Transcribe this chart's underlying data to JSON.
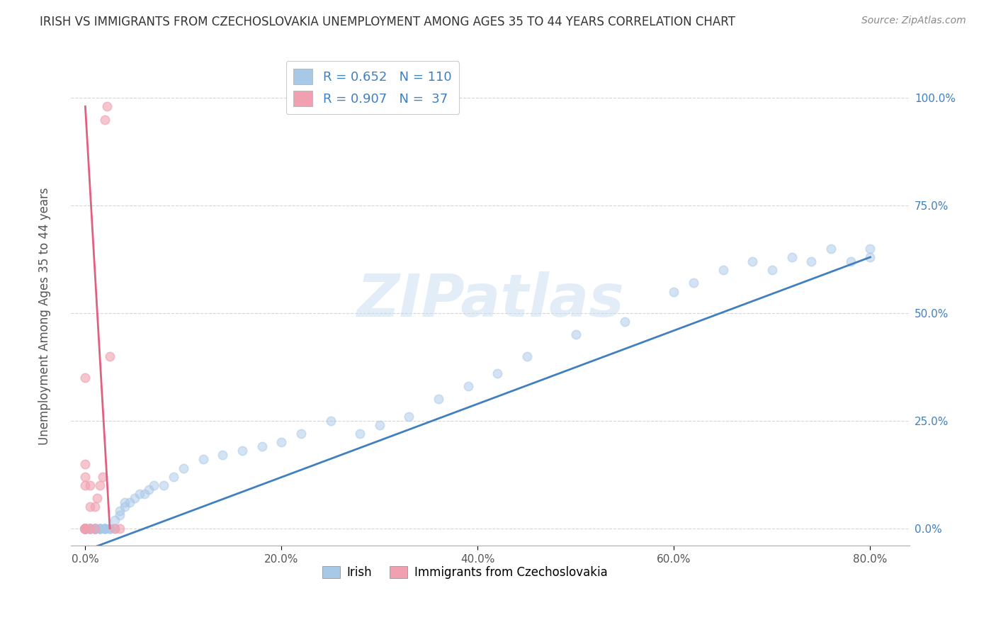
{
  "title": "IRISH VS IMMIGRANTS FROM CZECHOSLOVAKIA UNEMPLOYMENT AMONG AGES 35 TO 44 YEARS CORRELATION CHART",
  "source": "Source: ZipAtlas.com",
  "ylabel": "Unemployment Among Ages 35 to 44 years",
  "irish_R": 0.652,
  "irish_N": 110,
  "czech_R": 0.907,
  "czech_N": 37,
  "irish_color": "#a8c8e8",
  "czech_color": "#f0a0b0",
  "irish_line_color": "#4080c0",
  "czech_line_color": "#e06080",
  "irish_scatter_x": [
    0.0,
    0.0,
    0.0,
    0.0,
    0.0,
    0.0,
    0.0,
    0.0,
    0.0,
    0.0,
    0.0,
    0.0,
    0.0,
    0.0,
    0.0,
    0.0,
    0.0,
    0.0,
    0.0,
    0.0,
    0.0,
    0.0,
    0.0,
    0.0,
    0.0,
    0.0,
    0.0,
    0.0,
    0.0,
    0.0,
    0.005,
    0.005,
    0.005,
    0.005,
    0.005,
    0.005,
    0.005,
    0.005,
    0.005,
    0.005,
    0.01,
    0.01,
    0.01,
    0.01,
    0.01,
    0.01,
    0.01,
    0.01,
    0.01,
    0.01,
    0.015,
    0.015,
    0.015,
    0.015,
    0.015,
    0.02,
    0.02,
    0.02,
    0.02,
    0.02,
    0.025,
    0.025,
    0.025,
    0.03,
    0.03,
    0.035,
    0.035,
    0.04,
    0.04,
    0.045,
    0.05,
    0.055,
    0.06,
    0.065,
    0.07,
    0.08,
    0.09,
    0.1,
    0.12,
    0.14,
    0.16,
    0.18,
    0.2,
    0.22,
    0.25,
    0.28,
    0.3,
    0.33,
    0.36,
    0.39,
    0.42,
    0.45,
    0.5,
    0.55,
    0.6,
    0.62,
    0.65,
    0.68,
    0.7,
    0.72,
    0.74,
    0.76,
    0.78,
    0.8,
    0.8
  ],
  "irish_scatter_y": [
    0.0,
    0.0,
    0.0,
    0.0,
    0.0,
    0.0,
    0.0,
    0.0,
    0.0,
    0.0,
    0.0,
    0.0,
    0.0,
    0.0,
    0.0,
    0.0,
    0.0,
    0.0,
    0.0,
    0.0,
    0.0,
    0.0,
    0.0,
    0.0,
    0.0,
    0.0,
    0.0,
    0.0,
    0.0,
    0.0,
    0.0,
    0.0,
    0.0,
    0.0,
    0.0,
    0.0,
    0.0,
    0.0,
    0.0,
    0.0,
    0.0,
    0.0,
    0.0,
    0.0,
    0.0,
    0.0,
    0.0,
    0.0,
    0.0,
    0.0,
    0.0,
    0.0,
    0.0,
    0.0,
    0.0,
    0.0,
    0.0,
    0.0,
    0.0,
    0.0,
    0.0,
    0.0,
    0.0,
    0.0,
    0.02,
    0.03,
    0.04,
    0.05,
    0.06,
    0.06,
    0.07,
    0.08,
    0.08,
    0.09,
    0.1,
    0.1,
    0.12,
    0.14,
    0.16,
    0.17,
    0.18,
    0.19,
    0.2,
    0.22,
    0.25,
    0.22,
    0.24,
    0.26,
    0.3,
    0.33,
    0.36,
    0.4,
    0.45,
    0.48,
    0.55,
    0.57,
    0.6,
    0.62,
    0.6,
    0.63,
    0.62,
    0.65,
    0.62,
    0.63,
    0.65
  ],
  "czech_scatter_x": [
    0.0,
    0.0,
    0.0,
    0.0,
    0.0,
    0.0,
    0.0,
    0.0,
    0.0,
    0.0,
    0.0,
    0.0,
    0.005,
    0.005,
    0.005,
    0.01,
    0.01,
    0.012,
    0.015,
    0.018,
    0.02,
    0.022,
    0.025,
    0.03,
    0.035
  ],
  "czech_scatter_y": [
    0.0,
    0.0,
    0.0,
    0.0,
    0.0,
    0.0,
    0.0,
    0.0,
    0.1,
    0.12,
    0.15,
    0.35,
    0.0,
    0.05,
    0.1,
    0.0,
    0.05,
    0.07,
    0.1,
    0.12,
    0.95,
    0.98,
    0.4,
    0.0,
    0.0
  ],
  "irish_trend_x": [
    -0.01,
    0.8
  ],
  "irish_trend_y": [
    -0.06,
    0.63
  ],
  "czech_trend_x": [
    0.0,
    0.025
  ],
  "czech_trend_y": [
    0.98,
    0.0
  ],
  "xlim": [
    -0.015,
    0.84
  ],
  "ylim": [
    -0.04,
    1.1
  ],
  "xticks": [
    0.0,
    0.2,
    0.4,
    0.6,
    0.8
  ],
  "xticklabels": [
    "0.0%",
    "20.0%",
    "40.0%",
    "60.0%",
    "80.0%"
  ],
  "yticks": [
    0.0,
    0.25,
    0.5,
    0.75,
    1.0
  ],
  "yticklabels": [
    "0.0%",
    "25.0%",
    "50.0%",
    "75.0%",
    "100.0%"
  ],
  "watermark": "ZIPatlas",
  "background_color": "#ffffff",
  "grid_color": "#cccccc"
}
